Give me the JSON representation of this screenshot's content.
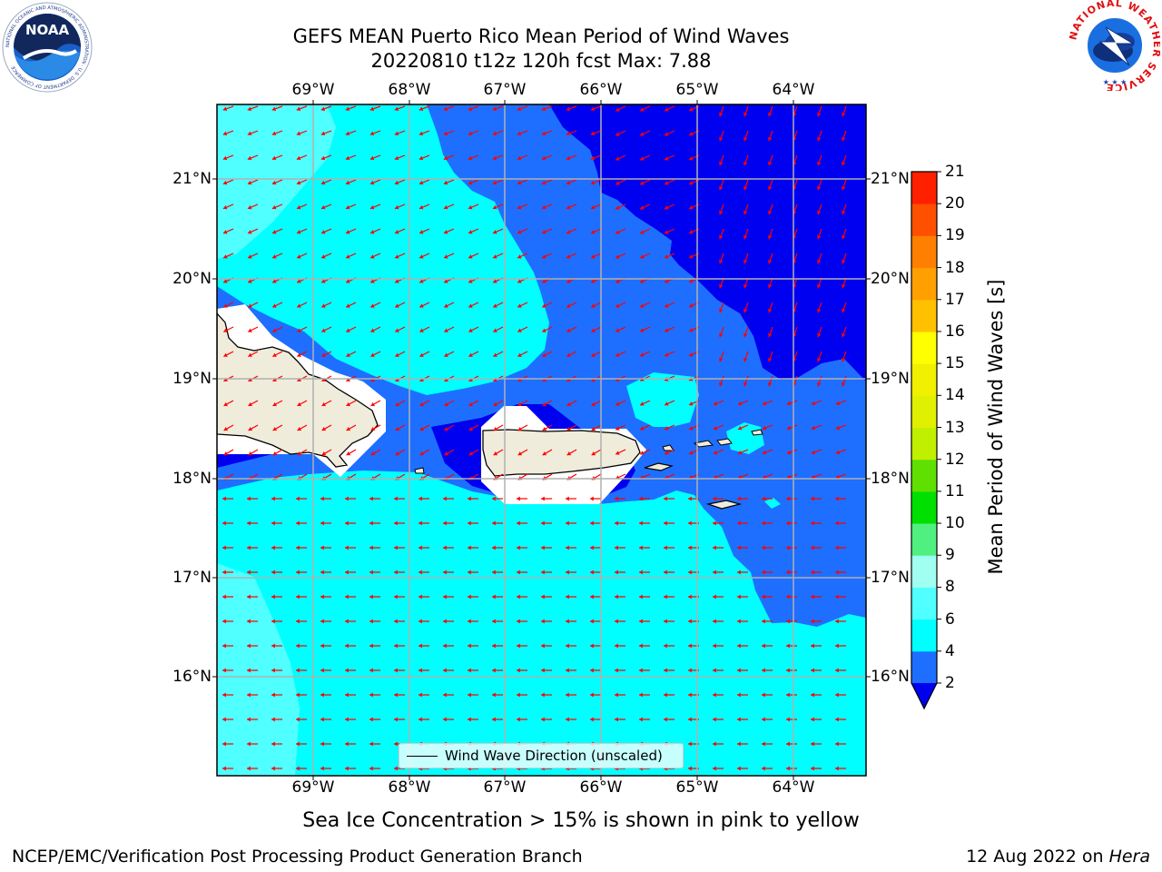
{
  "header": {
    "title_line1": "GEFS MEAN Puerto Rico Mean Period of Wind Waves",
    "title_line2": "20220810 t12z 120h fcst   Max: 7.88"
  },
  "logos": {
    "left": {
      "text": "NOAA",
      "ring_text": "NATIONAL OCEANIC AND ATMOSPHERIC ADMINISTRATION · U.S. DEPARTMENT OF COMMERCE"
    },
    "right": {
      "ring_text": "NATIONAL WEATHER SERVICE"
    }
  },
  "map": {
    "lon_labels": [
      "69°W",
      "68°W",
      "67°W",
      "66°W",
      "65°W",
      "64°W"
    ],
    "lat_labels": [
      "21°N",
      "20°N",
      "19°N",
      "18°N",
      "17°N",
      "16°N"
    ],
    "colors": {
      "band_2_4": "#1e6fff",
      "band_4_6": "#00ffff",
      "band_6_8": "#50ffff",
      "below_2": "#0000f0",
      "land": "#efecdc",
      "arrow": "#ff0000",
      "grid": "#b0b0b0"
    },
    "legend_label": "Wind Wave Direction (unscaled)",
    "note": "Sea Ice Concentration > 15% is shown in pink to yellow"
  },
  "colorbar": {
    "title": "Mean Period of Wind Waves [s]",
    "ticks": [
      "2",
      "4",
      "6",
      "8",
      "9",
      "10",
      "11",
      "12",
      "13",
      "14",
      "15",
      "16",
      "17",
      "18",
      "19",
      "20",
      "21"
    ],
    "colors": [
      "#1e6fff",
      "#00ffff",
      "#50ffff",
      "#a0fff0",
      "#50f080",
      "#00e000",
      "#60e000",
      "#c0f000",
      "#e0f000",
      "#f0f000",
      "#ffff00",
      "#ffc000",
      "#ffa000",
      "#ff8000",
      "#ff5000",
      "#ff2000",
      "#ff0000"
    ],
    "under_color": "#0000f0"
  },
  "footer": {
    "left": "NCEP/EMC/Verification Post Processing Product Generation Branch",
    "right_prefix": "12 Aug 2022 on ",
    "right_host": "Hera"
  }
}
